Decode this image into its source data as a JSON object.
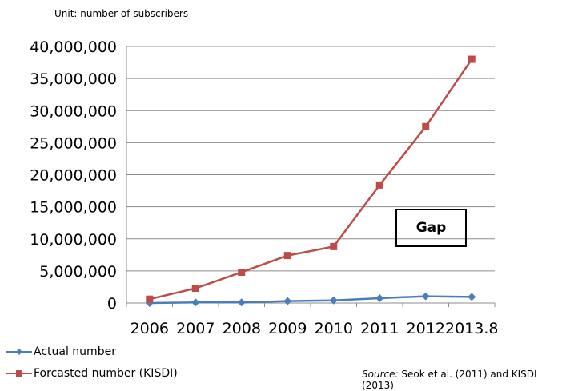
{
  "unit_label": "Unit: number of subscribers",
  "source_prefix": "Source:",
  "source_text": " Seok et al. (2011) and KISDI (2013)",
  "annotation": "Gap",
  "chart_data": {
    "type": "line",
    "categories": [
      "2006",
      "2007",
      "2008",
      "2009",
      "2010",
      "2011",
      "2012",
      "2013.8"
    ],
    "ylim": [
      0,
      40000000
    ],
    "y_ticks": [
      "0",
      "5,000,000",
      "10,000,000",
      "15,000,000",
      "20,000,000",
      "25,000,000",
      "30,000,000",
      "35,000,000",
      "40,000,000"
    ],
    "grid": true,
    "legend_position": "bottom-left",
    "series": [
      {
        "name": "Actual number",
        "color": "#4a7ebb",
        "marker": "diamond",
        "values": [
          0,
          100000,
          100000,
          300000,
          400000,
          750000,
          1050000,
          950000
        ]
      },
      {
        "name": "Forcasted number (KISDI)",
        "color": "#be4b48",
        "marker": "square",
        "values": [
          600000,
          2300000,
          4800000,
          7400000,
          8800000,
          18400000,
          27500000,
          38000000
        ]
      }
    ]
  }
}
